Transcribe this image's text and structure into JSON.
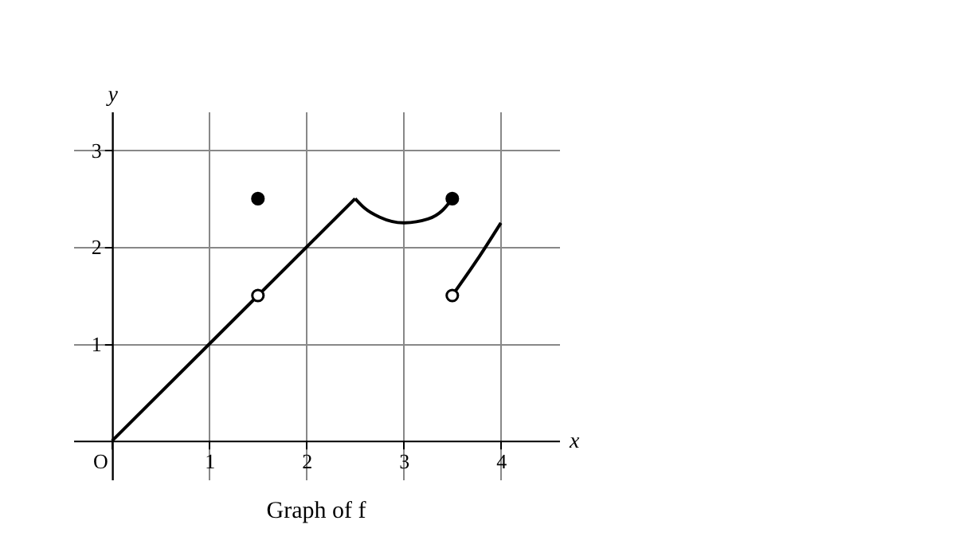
{
  "chart_data": {
    "type": "line",
    "title": "Graph of f",
    "xlabel": "x",
    "ylabel": "y",
    "xlim": [
      -0.4,
      4.6
    ],
    "ylim": [
      -0.4,
      3.4
    ],
    "xticks": [
      {
        "value": 0,
        "label": "O"
      },
      1,
      2,
      3,
      4
    ],
    "yticks": [
      1,
      2,
      3
    ],
    "grid": true,
    "series": [
      {
        "color": "#000000",
        "marker": "none",
        "x": [
          0,
          2.5
        ],
        "values": [
          0,
          2.5
        ]
      },
      {
        "color": "#000000",
        "marker": "none",
        "x": [
          2.5,
          2.6,
          2.75,
          3,
          3.25,
          3.4,
          3.5
        ],
        "values": [
          2.5,
          2.4,
          2.31,
          2.25,
          2.29,
          2.38,
          2.5
        ]
      },
      {
        "color": "#000000",
        "marker": "none",
        "x": [
          3.5,
          3.75,
          4
        ],
        "values": [
          1.5,
          1.86,
          2.25
        ]
      },
      {
        "type": "scatter",
        "color": "#000000",
        "marker": "circle",
        "x": [
          1.5,
          3.5
        ],
        "values": [
          2.5,
          2.5
        ]
      },
      {
        "type": "scatter",
        "color": "#ffffff",
        "marker": "circle",
        "x": [
          1.5,
          3.5
        ],
        "values": [
          1.5,
          1.5
        ]
      }
    ]
  }
}
